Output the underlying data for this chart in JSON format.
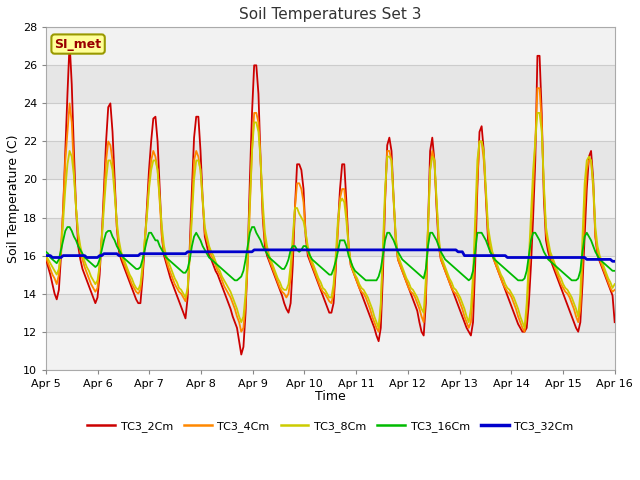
{
  "title": "Soil Temperatures Set 3",
  "xlabel": "Time",
  "ylabel": "Soil Temperature (C)",
  "ylim": [
    10,
    28
  ],
  "yticks": [
    10,
    12,
    14,
    16,
    18,
    20,
    22,
    24,
    26,
    28
  ],
  "xlim_hours": [
    0,
    264
  ],
  "xtick_hours": [
    0,
    24,
    48,
    72,
    96,
    120,
    144,
    168,
    192,
    216,
    240,
    264
  ],
  "xtick_labels": [
    "Apr 5",
    "Apr 6",
    "Apr 7",
    "Apr 8",
    "Apr 9",
    "Apr 10",
    "Apr 11",
    "Apr 12",
    "Apr 13",
    "Apr 14",
    "Apr 15",
    "Apr 16"
  ],
  "fig_bg": "#ffffff",
  "plot_bg_light": "#f0f0f0",
  "plot_bg_dark": "#e0e0e0",
  "grid_color": "#d8d8d8",
  "annotation_text": "SI_met",
  "annotation_bg": "#ffff99",
  "annotation_border": "#999900",
  "series_order": [
    "TC3_2Cm",
    "TC3_4Cm",
    "TC3_8Cm",
    "TC3_16Cm",
    "TC3_32Cm"
  ],
  "series_colors": [
    "#cc0000",
    "#ff8800",
    "#cccc00",
    "#00bb00",
    "#0000cc"
  ],
  "series_lw": [
    1.3,
    1.3,
    1.3,
    1.3,
    2.0
  ],
  "TC3_2Cm": [
    15.8,
    15.4,
    15.0,
    14.5,
    14.0,
    13.7,
    14.2,
    16.0,
    18.5,
    21.5,
    24.5,
    27.2,
    25.0,
    21.5,
    18.5,
    16.5,
    15.8,
    15.3,
    15.0,
    14.7,
    14.4,
    14.1,
    13.8,
    13.5,
    13.8,
    15.0,
    17.0,
    19.5,
    22.0,
    23.8,
    24.0,
    22.5,
    20.0,
    17.5,
    16.2,
    15.8,
    15.5,
    15.2,
    14.9,
    14.6,
    14.3,
    14.0,
    13.7,
    13.5,
    13.5,
    14.8,
    16.5,
    18.5,
    20.5,
    22.0,
    23.2,
    23.3,
    22.0,
    19.5,
    17.0,
    16.0,
    15.6,
    15.2,
    14.8,
    14.5,
    14.2,
    13.9,
    13.6,
    13.3,
    13.0,
    12.7,
    13.8,
    16.5,
    19.5,
    22.2,
    23.3,
    23.3,
    21.5,
    19.0,
    17.0,
    16.5,
    16.0,
    15.8,
    15.5,
    15.2,
    15.0,
    14.7,
    14.4,
    14.1,
    13.8,
    13.5,
    13.2,
    12.8,
    12.5,
    12.2,
    11.5,
    10.8,
    11.2,
    13.0,
    16.0,
    20.0,
    23.5,
    26.0,
    26.0,
    24.5,
    21.0,
    18.0,
    16.5,
    16.0,
    15.7,
    15.4,
    15.1,
    14.8,
    14.5,
    14.2,
    13.9,
    13.5,
    13.2,
    13.0,
    13.5,
    15.5,
    18.5,
    20.8,
    20.8,
    20.5,
    19.5,
    17.0,
    16.0,
    15.7,
    15.4,
    15.1,
    14.8,
    14.5,
    14.2,
    13.9,
    13.6,
    13.3,
    13.0,
    13.0,
    13.5,
    15.2,
    17.5,
    19.5,
    20.8,
    20.8,
    18.8,
    16.5,
    15.5,
    15.2,
    14.9,
    14.6,
    14.3,
    14.0,
    13.7,
    13.4,
    13.1,
    12.8,
    12.5,
    12.2,
    11.8,
    11.5,
    12.2,
    15.0,
    18.8,
    21.8,
    22.2,
    21.5,
    19.0,
    16.8,
    15.8,
    15.5,
    15.2,
    14.9,
    14.6,
    14.3,
    14.0,
    13.7,
    13.4,
    13.1,
    12.5,
    12.0,
    11.8,
    13.5,
    17.5,
    21.5,
    22.2,
    21.0,
    18.5,
    16.5,
    15.8,
    15.5,
    15.2,
    14.9,
    14.6,
    14.3,
    14.0,
    13.7,
    13.4,
    13.1,
    12.8,
    12.5,
    12.2,
    12.0,
    11.8,
    12.5,
    15.5,
    19.5,
    22.5,
    22.8,
    21.5,
    19.0,
    16.8,
    16.2,
    16.0,
    15.7,
    15.4,
    15.1,
    14.8,
    14.5,
    14.2,
    13.9,
    13.6,
    13.3,
    13.0,
    12.7,
    12.4,
    12.2,
    12.0,
    12.0,
    12.2,
    13.5,
    15.5,
    18.0,
    21.0,
    26.5,
    26.5,
    23.5,
    19.0,
    16.8,
    16.2,
    15.8,
    15.5,
    15.2,
    14.9,
    14.6,
    14.3,
    14.0,
    13.7,
    13.4,
    13.1,
    12.8,
    12.5,
    12.2,
    12.0,
    12.5,
    14.5,
    17.0,
    19.5,
    21.2,
    21.5,
    20.0,
    17.0,
    16.0,
    15.7,
    15.4,
    15.1,
    14.8,
    14.5,
    14.2,
    13.9,
    12.5
  ],
  "TC3_4Cm": [
    15.9,
    15.6,
    15.3,
    15.0,
    14.8,
    14.5,
    15.0,
    16.5,
    18.5,
    21.0,
    22.5,
    24.0,
    23.0,
    20.5,
    18.5,
    17.0,
    16.2,
    15.8,
    15.4,
    15.1,
    14.8,
    14.5,
    14.3,
    14.1,
    14.3,
    15.5,
    17.0,
    19.0,
    21.0,
    22.0,
    21.8,
    21.0,
    19.5,
    17.5,
    16.5,
    16.0,
    15.7,
    15.4,
    15.1,
    14.8,
    14.5,
    14.3,
    14.1,
    14.0,
    14.2,
    15.2,
    16.8,
    18.2,
    19.8,
    21.0,
    21.5,
    21.2,
    20.5,
    18.8,
    17.0,
    16.2,
    15.8,
    15.4,
    15.1,
    14.8,
    14.5,
    14.3,
    14.1,
    14.0,
    13.8,
    13.6,
    14.2,
    16.0,
    18.5,
    21.0,
    21.5,
    21.2,
    20.5,
    18.8,
    17.2,
    16.8,
    16.4,
    16.0,
    15.8,
    15.5,
    15.2,
    15.0,
    14.7,
    14.4,
    14.2,
    14.0,
    13.8,
    13.5,
    13.2,
    12.8,
    12.5,
    12.0,
    12.2,
    13.5,
    15.5,
    18.5,
    21.5,
    23.5,
    23.5,
    23.0,
    21.0,
    18.2,
    16.8,
    16.2,
    15.8,
    15.5,
    15.2,
    14.9,
    14.6,
    14.3,
    14.1,
    14.0,
    13.8,
    14.0,
    14.8,
    16.5,
    18.5,
    19.8,
    19.8,
    19.5,
    18.8,
    17.2,
    16.2,
    15.8,
    15.5,
    15.2,
    14.9,
    14.6,
    14.3,
    14.1,
    14.0,
    13.8,
    13.6,
    13.5,
    14.0,
    15.5,
    17.2,
    19.0,
    19.5,
    19.5,
    18.2,
    16.5,
    15.5,
    15.2,
    14.9,
    14.6,
    14.3,
    14.1,
    14.0,
    13.8,
    13.5,
    13.2,
    12.8,
    12.5,
    12.2,
    12.0,
    13.2,
    16.0,
    19.0,
    21.5,
    21.5,
    21.0,
    18.8,
    16.8,
    15.8,
    15.5,
    15.2,
    14.9,
    14.6,
    14.3,
    14.1,
    14.0,
    13.8,
    13.5,
    13.2,
    12.8,
    12.5,
    14.0,
    17.2,
    20.5,
    21.5,
    21.0,
    18.8,
    16.8,
    15.8,
    15.5,
    15.2,
    14.9,
    14.6,
    14.3,
    14.1,
    14.0,
    13.8,
    13.5,
    13.2,
    12.8,
    12.5,
    12.2,
    12.5,
    14.0,
    17.0,
    20.0,
    22.0,
    22.0,
    21.0,
    19.2,
    17.2,
    16.4,
    16.0,
    15.7,
    15.4,
    15.1,
    14.8,
    14.5,
    14.3,
    14.1,
    14.0,
    13.8,
    13.5,
    13.2,
    12.8,
    12.5,
    12.2,
    12.0,
    13.0,
    15.0,
    17.2,
    19.5,
    22.0,
    24.8,
    24.8,
    23.0,
    19.5,
    17.2,
    16.5,
    16.0,
    15.7,
    15.4,
    15.1,
    14.8,
    14.5,
    14.3,
    14.1,
    14.0,
    13.8,
    13.5,
    13.2,
    12.8,
    12.5,
    13.2,
    15.5,
    18.5,
    20.5,
    21.0,
    21.0,
    19.5,
    17.0,
    16.2,
    15.8,
    15.5,
    15.2,
    14.9,
    14.6,
    14.3,
    14.1,
    14.2
  ],
  "TC3_8Cm": [
    16.0,
    15.8,
    15.6,
    15.4,
    15.2,
    15.0,
    15.3,
    16.2,
    17.8,
    19.5,
    20.8,
    21.5,
    21.2,
    20.2,
    18.5,
    17.2,
    16.5,
    16.0,
    15.7,
    15.4,
    15.2,
    14.9,
    14.7,
    14.5,
    14.7,
    15.5,
    16.8,
    18.5,
    20.0,
    21.0,
    21.0,
    20.5,
    19.2,
    17.8,
    16.8,
    16.2,
    15.9,
    15.6,
    15.3,
    15.0,
    14.8,
    14.5,
    14.3,
    14.2,
    14.5,
    15.5,
    16.8,
    18.0,
    19.5,
    20.5,
    21.0,
    21.0,
    20.5,
    19.0,
    17.5,
    16.5,
    16.0,
    15.7,
    15.4,
    15.1,
    14.8,
    14.6,
    14.3,
    14.2,
    14.0,
    13.8,
    14.3,
    16.0,
    18.0,
    20.0,
    21.0,
    21.0,
    20.5,
    19.0,
    17.5,
    17.0,
    16.5,
    16.2,
    16.0,
    15.7,
    15.4,
    15.2,
    14.9,
    14.7,
    14.5,
    14.3,
    14.1,
    13.8,
    13.5,
    13.2,
    12.8,
    12.5,
    12.8,
    14.0,
    16.2,
    18.8,
    21.5,
    23.0,
    23.0,
    22.5,
    21.0,
    18.8,
    17.2,
    16.5,
    16.0,
    15.7,
    15.4,
    15.1,
    14.8,
    14.6,
    14.3,
    14.2,
    14.2,
    14.5,
    15.5,
    17.0,
    18.5,
    18.5,
    18.2,
    18.0,
    17.8,
    17.2,
    16.5,
    16.0,
    15.7,
    15.4,
    15.1,
    14.8,
    14.6,
    14.3,
    14.2,
    14.0,
    13.8,
    13.8,
    14.5,
    16.0,
    17.8,
    18.8,
    19.0,
    18.8,
    17.8,
    16.5,
    15.7,
    15.3,
    15.0,
    14.8,
    14.5,
    14.3,
    14.2,
    14.0,
    13.8,
    13.5,
    13.2,
    12.8,
    12.5,
    12.2,
    13.5,
    16.5,
    19.5,
    21.2,
    21.2,
    21.0,
    19.0,
    17.0,
    16.0,
    15.7,
    15.4,
    15.1,
    14.8,
    14.6,
    14.3,
    14.2,
    14.0,
    13.8,
    13.5,
    13.2,
    13.0,
    14.8,
    17.5,
    20.5,
    21.2,
    21.0,
    19.0,
    17.0,
    16.0,
    15.7,
    15.4,
    15.1,
    14.8,
    14.6,
    14.3,
    14.2,
    14.0,
    13.8,
    13.5,
    13.2,
    12.8,
    12.5,
    13.2,
    15.0,
    18.0,
    21.0,
    22.0,
    22.0,
    21.5,
    19.5,
    17.5,
    16.8,
    16.2,
    15.9,
    15.6,
    15.3,
    15.0,
    14.8,
    14.5,
    14.3,
    14.2,
    14.0,
    13.8,
    13.5,
    13.2,
    12.8,
    12.5,
    12.2,
    13.5,
    15.8,
    18.2,
    20.5,
    22.0,
    23.5,
    23.5,
    22.5,
    19.8,
    17.5,
    16.8,
    16.2,
    15.9,
    15.6,
    15.3,
    15.0,
    14.8,
    14.5,
    14.3,
    14.2,
    14.0,
    13.8,
    13.5,
    13.2,
    12.8,
    14.0,
    17.0,
    19.8,
    21.0,
    21.2,
    21.0,
    19.8,
    17.5,
    16.5,
    16.0,
    15.7,
    15.4,
    15.1,
    14.8,
    14.6,
    14.3,
    14.5
  ],
  "TC3_16Cm": [
    16.2,
    16.1,
    15.9,
    15.8,
    15.7,
    15.6,
    15.8,
    16.3,
    16.8,
    17.3,
    17.5,
    17.5,
    17.3,
    17.0,
    16.8,
    16.5,
    16.3,
    16.1,
    15.9,
    15.8,
    15.7,
    15.6,
    15.5,
    15.4,
    15.5,
    15.8,
    16.3,
    16.8,
    17.2,
    17.3,
    17.3,
    17.0,
    16.8,
    16.5,
    16.3,
    16.1,
    15.9,
    15.8,
    15.7,
    15.6,
    15.5,
    15.4,
    15.3,
    15.3,
    15.4,
    15.8,
    16.3,
    16.8,
    17.2,
    17.2,
    17.0,
    16.8,
    16.8,
    16.5,
    16.3,
    16.1,
    15.9,
    15.8,
    15.7,
    15.6,
    15.5,
    15.4,
    15.3,
    15.2,
    15.1,
    15.1,
    15.3,
    15.8,
    16.5,
    17.0,
    17.2,
    17.0,
    16.8,
    16.5,
    16.3,
    16.1,
    15.9,
    15.8,
    15.7,
    15.6,
    15.5,
    15.4,
    15.3,
    15.2,
    15.1,
    15.0,
    14.9,
    14.8,
    14.7,
    14.7,
    14.8,
    14.9,
    15.2,
    15.8,
    16.5,
    17.2,
    17.5,
    17.5,
    17.2,
    17.0,
    16.8,
    16.5,
    16.3,
    16.1,
    15.9,
    15.8,
    15.7,
    15.6,
    15.5,
    15.4,
    15.3,
    15.3,
    15.5,
    15.8,
    16.3,
    16.5,
    16.5,
    16.3,
    16.2,
    16.3,
    16.5,
    16.5,
    16.3,
    16.0,
    15.8,
    15.7,
    15.6,
    15.5,
    15.4,
    15.3,
    15.2,
    15.1,
    15.0,
    15.0,
    15.3,
    15.7,
    16.2,
    16.8,
    16.8,
    16.8,
    16.5,
    16.0,
    15.7,
    15.4,
    15.2,
    15.1,
    15.0,
    14.9,
    14.8,
    14.7,
    14.7,
    14.7,
    14.7,
    14.7,
    14.7,
    14.9,
    15.3,
    16.0,
    16.8,
    17.2,
    17.2,
    17.0,
    16.8,
    16.5,
    16.2,
    16.0,
    15.8,
    15.7,
    15.6,
    15.5,
    15.4,
    15.3,
    15.2,
    15.1,
    15.0,
    14.9,
    14.8,
    15.3,
    16.5,
    17.2,
    17.2,
    17.0,
    16.8,
    16.5,
    16.2,
    16.0,
    15.8,
    15.7,
    15.6,
    15.5,
    15.4,
    15.3,
    15.2,
    15.1,
    15.0,
    14.9,
    14.8,
    14.7,
    14.8,
    15.2,
    16.2,
    17.2,
    17.2,
    17.2,
    17.0,
    16.8,
    16.5,
    16.2,
    16.0,
    15.8,
    15.7,
    15.6,
    15.5,
    15.4,
    15.3,
    15.2,
    15.1,
    15.0,
    14.9,
    14.8,
    14.7,
    14.7,
    14.7,
    14.8,
    15.2,
    16.0,
    16.8,
    17.2,
    17.2,
    17.0,
    16.8,
    16.5,
    16.2,
    16.0,
    15.8,
    15.7,
    15.6,
    15.5,
    15.4,
    15.3,
    15.2,
    15.1,
    15.0,
    14.9,
    14.8,
    14.7,
    14.7,
    14.7,
    14.8,
    15.2,
    16.2,
    17.0,
    17.2,
    17.0,
    16.8,
    16.5,
    16.2,
    16.0,
    15.8,
    15.7,
    15.6,
    15.5,
    15.4,
    15.3,
    15.2,
    15.2
  ],
  "TC3_32Cm": [
    16.0,
    16.0,
    16.0,
    15.9,
    15.9,
    15.9,
    15.9,
    15.9,
    16.0,
    16.0,
    16.0,
    16.0,
    16.0,
    16.0,
    16.0,
    16.0,
    16.0,
    16.0,
    16.0,
    15.9,
    15.9,
    15.9,
    15.9,
    15.9,
    15.9,
    16.0,
    16.0,
    16.1,
    16.1,
    16.1,
    16.1,
    16.1,
    16.1,
    16.1,
    16.0,
    16.0,
    16.0,
    16.0,
    16.0,
    16.0,
    16.0,
    16.0,
    16.0,
    16.0,
    16.1,
    16.1,
    16.1,
    16.1,
    16.1,
    16.1,
    16.1,
    16.1,
    16.1,
    16.1,
    16.1,
    16.1,
    16.1,
    16.1,
    16.1,
    16.1,
    16.1,
    16.1,
    16.1,
    16.1,
    16.1,
    16.1,
    16.2,
    16.2,
    16.2,
    16.2,
    16.2,
    16.2,
    16.2,
    16.2,
    16.2,
    16.2,
    16.2,
    16.2,
    16.2,
    16.2,
    16.2,
    16.2,
    16.2,
    16.2,
    16.2,
    16.2,
    16.2,
    16.2,
    16.2,
    16.2,
    16.2,
    16.2,
    16.2,
    16.2,
    16.2,
    16.2,
    16.2,
    16.3,
    16.3,
    16.3,
    16.3,
    16.3,
    16.3,
    16.3,
    16.3,
    16.3,
    16.3,
    16.3,
    16.3,
    16.3,
    16.3,
    16.3,
    16.3,
    16.3,
    16.3,
    16.3,
    16.3,
    16.3,
    16.3,
    16.3,
    16.3,
    16.3,
    16.3,
    16.3,
    16.3,
    16.3,
    16.3,
    16.3,
    16.3,
    16.3,
    16.3,
    16.3,
    16.3,
    16.3,
    16.3,
    16.3,
    16.3,
    16.3,
    16.3,
    16.3,
    16.3,
    16.3,
    16.3,
    16.3,
    16.3,
    16.3,
    16.3,
    16.3,
    16.3,
    16.3,
    16.3,
    16.3,
    16.3,
    16.3,
    16.3,
    16.3,
    16.3,
    16.3,
    16.3,
    16.3,
    16.3,
    16.3,
    16.3,
    16.3,
    16.3,
    16.3,
    16.3,
    16.3,
    16.3,
    16.3,
    16.3,
    16.3,
    16.3,
    16.3,
    16.3,
    16.3,
    16.3,
    16.3,
    16.3,
    16.3,
    16.3,
    16.3,
    16.3,
    16.3,
    16.3,
    16.3,
    16.3,
    16.3,
    16.3,
    16.3,
    16.3,
    16.3,
    16.2,
    16.2,
    16.2,
    16.0,
    16.0,
    16.0,
    16.0,
    16.0,
    16.0,
    16.0,
    16.0,
    16.0,
    16.0,
    16.0,
    16.0,
    16.0,
    16.0,
    16.0,
    16.0,
    16.0,
    16.0,
    16.0,
    16.0,
    15.9,
    15.9,
    15.9,
    15.9,
    15.9,
    15.9,
    15.9,
    15.9,
    15.9,
    15.9,
    15.9,
    15.9,
    15.9,
    15.9,
    15.9,
    15.9,
    15.9,
    15.9,
    15.9,
    15.9,
    15.9,
    15.9,
    15.9,
    15.9,
    15.9,
    15.9,
    15.9,
    15.9,
    15.9,
    15.9,
    15.9,
    15.9,
    15.9,
    15.9,
    15.9,
    15.9,
    15.9,
    15.8,
    15.8,
    15.8,
    15.8,
    15.8,
    15.8,
    15.8,
    15.8,
    15.8,
    15.8,
    15.8,
    15.8,
    15.7,
    15.7
  ]
}
